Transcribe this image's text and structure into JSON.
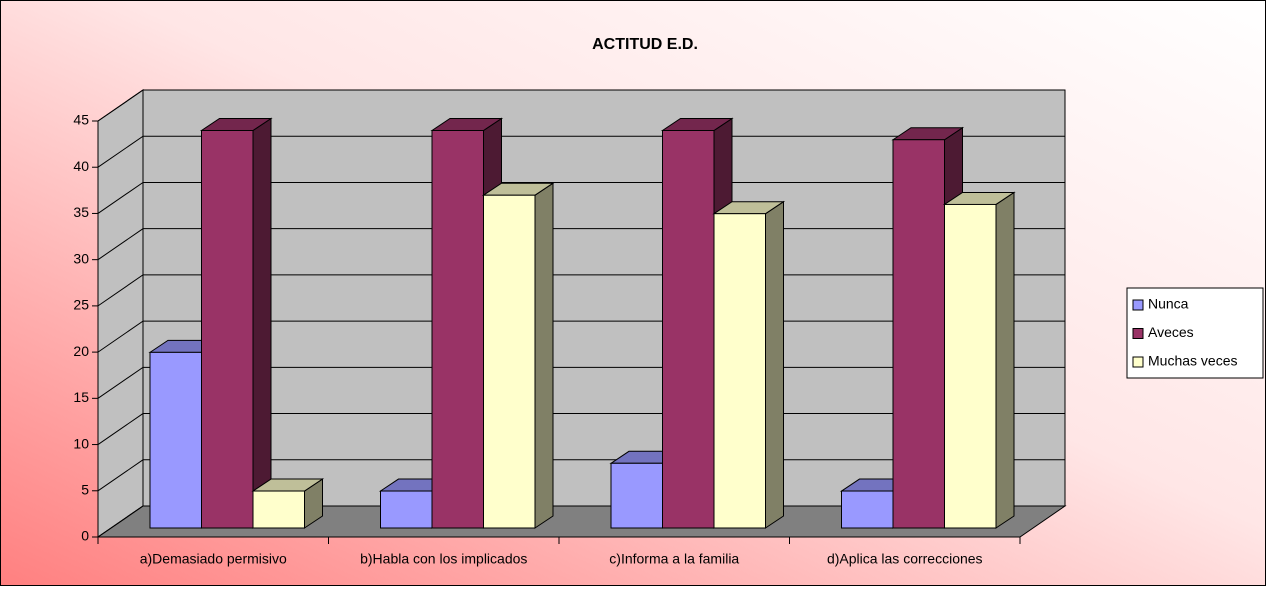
{
  "chart_data": {
    "type": "bar3d",
    "title": "ACTITUD E.D.",
    "categories": [
      "a)Demasiado permisivo",
      "b)Habla con los implicados",
      "c)Informa a la familia",
      "d)Aplica las correcciones"
    ],
    "series": [
      {
        "name": "Nunca",
        "color": "#9999ff",
        "values": [
          19,
          4,
          7,
          4
        ]
      },
      {
        "name": "Aveces",
        "color": "#993366",
        "values": [
          43,
          43,
          43,
          42
        ]
      },
      {
        "name": "Muchas veces",
        "color": "#ffffcc",
        "values": [
          4,
          36,
          34,
          35
        ]
      }
    ],
    "ylim": [
      0,
      45
    ],
    "yticks": [
      0,
      5,
      10,
      15,
      20,
      25,
      30,
      35,
      40,
      45
    ],
    "grid": true,
    "legend": "right"
  }
}
